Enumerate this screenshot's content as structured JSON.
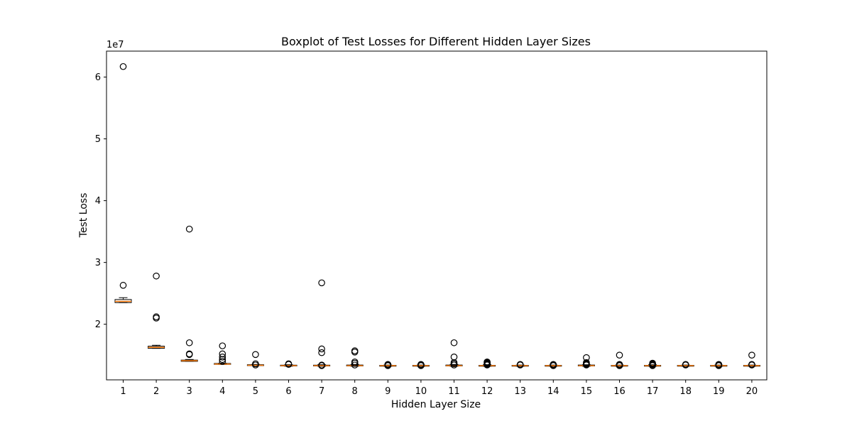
{
  "chart_data": {
    "type": "boxplot",
    "title": "Boxplot of Test Losses for Different Hidden Layer Sizes",
    "xlabel": "Hidden Layer Size",
    "ylabel": "Test Loss",
    "y_multiplier_label": "1e7",
    "ylim": [
      11000000,
      64200000
    ],
    "yticks": [
      20000000,
      30000000,
      40000000,
      50000000,
      60000000
    ],
    "ytick_labels": [
      "2",
      "3",
      "4",
      "5",
      "6"
    ],
    "categories": [
      "1",
      "2",
      "3",
      "4",
      "5",
      "6",
      "7",
      "8",
      "9",
      "10",
      "11",
      "12",
      "13",
      "14",
      "15",
      "16",
      "17",
      "18",
      "19",
      "20"
    ],
    "boxes": [
      {
        "category": "1",
        "whislo": 23500000,
        "q1": 23500000,
        "median": 23700000,
        "q3": 24000000,
        "whishi": 24300000,
        "fliers": [
          61700000,
          26300000
        ]
      },
      {
        "category": "2",
        "whislo": 16100000,
        "q1": 16100000,
        "median": 16250000,
        "q3": 16450000,
        "whishi": 16600000,
        "fliers": [
          27800000,
          21200000,
          21000000
        ]
      },
      {
        "category": "3",
        "whislo": 14000000,
        "q1": 14000000,
        "median": 14100000,
        "q3": 14200000,
        "whishi": 14300000,
        "fliers": [
          35400000,
          17000000,
          15200000,
          15100000
        ]
      },
      {
        "category": "4",
        "whislo": 13500000,
        "q1": 13500000,
        "median": 13550000,
        "q3": 13650000,
        "whishi": 13700000,
        "fliers": [
          16500000,
          15200000,
          14700000,
          14300000,
          14000000
        ]
      },
      {
        "category": "5",
        "whislo": 13300000,
        "q1": 13300000,
        "median": 13350000,
        "q3": 13450000,
        "whishi": 13500000,
        "fliers": [
          15100000,
          13600000,
          13400000
        ]
      },
      {
        "category": "6",
        "whislo": 13200000,
        "q1": 13250000,
        "median": 13300000,
        "q3": 13380000,
        "whishi": 13450000,
        "fliers": [
          13600000,
          13500000
        ]
      },
      {
        "category": "7",
        "whislo": 13200000,
        "q1": 13250000,
        "median": 13300000,
        "q3": 13380000,
        "whishi": 13450000,
        "fliers": [
          26700000,
          16000000,
          15400000,
          13400000,
          13300000
        ]
      },
      {
        "category": "8",
        "whislo": 13200000,
        "q1": 13250000,
        "median": 13300000,
        "q3": 13400000,
        "whishi": 13500000,
        "fliers": [
          15700000,
          15500000,
          13900000,
          13700000,
          13400000
        ]
      },
      {
        "category": "9",
        "whislo": 13200000,
        "q1": 13250000,
        "median": 13300000,
        "q3": 13350000,
        "whishi": 13400000,
        "fliers": [
          13500000,
          13400000,
          13300000
        ]
      },
      {
        "category": "10",
        "whislo": 13200000,
        "q1": 13250000,
        "median": 13300000,
        "q3": 13350000,
        "whishi": 13400000,
        "fliers": [
          13500000,
          13400000,
          13300000
        ]
      },
      {
        "category": "11",
        "whislo": 13200000,
        "q1": 13250000,
        "median": 13300000,
        "q3": 13400000,
        "whishi": 13500000,
        "fliers": [
          17000000,
          14700000,
          13800000,
          13600000,
          13400000
        ]
      },
      {
        "category": "12",
        "whislo": 13200000,
        "q1": 13250000,
        "median": 13300000,
        "q3": 13350000,
        "whishi": 13450000,
        "fliers": [
          13900000,
          13800000,
          13700000,
          13600000,
          13500000,
          13400000
        ]
      },
      {
        "category": "13",
        "whislo": 13200000,
        "q1": 13250000,
        "median": 13300000,
        "q3": 13350000,
        "whishi": 13400000,
        "fliers": [
          13500000,
          13400000
        ]
      },
      {
        "category": "14",
        "whislo": 13200000,
        "q1": 13250000,
        "median": 13300000,
        "q3": 13350000,
        "whishi": 13400000,
        "fliers": [
          13500000,
          13400000,
          13300000
        ]
      },
      {
        "category": "15",
        "whislo": 13200000,
        "q1": 13250000,
        "median": 13300000,
        "q3": 13400000,
        "whishi": 13450000,
        "fliers": [
          14600000,
          13800000,
          13700000,
          13600000,
          13500000,
          13400000
        ]
      },
      {
        "category": "16",
        "whislo": 13200000,
        "q1": 13250000,
        "median": 13300000,
        "q3": 13350000,
        "whishi": 13400000,
        "fliers": [
          15000000,
          13500000,
          13400000,
          13300000
        ]
      },
      {
        "category": "17",
        "whislo": 13200000,
        "q1": 13250000,
        "median": 13300000,
        "q3": 13350000,
        "whishi": 13450000,
        "fliers": [
          13700000,
          13600000,
          13500000,
          13400000,
          13300000
        ]
      },
      {
        "category": "18",
        "whislo": 13200000,
        "q1": 13250000,
        "median": 13300000,
        "q3": 13350000,
        "whishi": 13400000,
        "fliers": [
          13500000,
          13400000
        ]
      },
      {
        "category": "19",
        "whislo": 13200000,
        "q1": 13250000,
        "median": 13300000,
        "q3": 13350000,
        "whishi": 13400000,
        "fliers": [
          13500000,
          13400000,
          13300000
        ]
      },
      {
        "category": "20",
        "whislo": 13200000,
        "q1": 13250000,
        "median": 13300000,
        "q3": 13350000,
        "whishi": 13400000,
        "fliers": [
          15000000,
          13500000,
          13400000
        ]
      }
    ],
    "grid": false,
    "colors": {
      "box": "#000000",
      "median": "#ff7f0e",
      "flier": "#000000",
      "background": "#ffffff"
    }
  }
}
